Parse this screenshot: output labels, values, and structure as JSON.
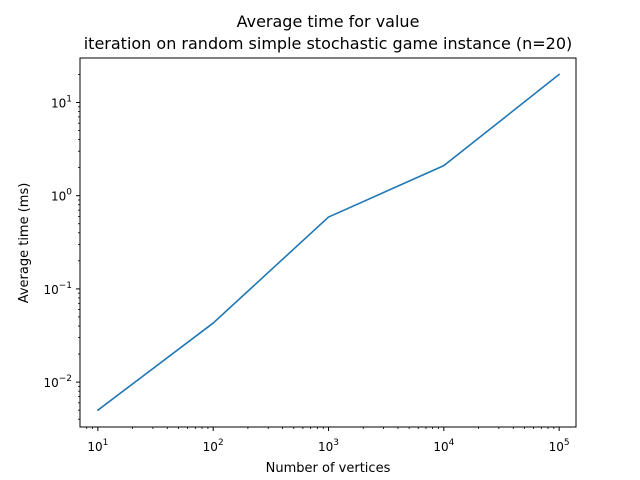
{
  "chart_data": {
    "type": "line",
    "title_lines": [
      "Average time for value",
      "iteration on random simple stochastic game instance (n=20)"
    ],
    "xlabel": "Number of vertices",
    "ylabel": "Average time (ms)",
    "x_scale": "log",
    "y_scale": "log",
    "xlim": [
      7,
      140000
    ],
    "ylim": [
      0.0033,
      30
    ],
    "x_ticks": [
      {
        "value": 10,
        "base": "10",
        "exp": "1"
      },
      {
        "value": 100,
        "base": "10",
        "exp": "2"
      },
      {
        "value": 1000,
        "base": "10",
        "exp": "3"
      },
      {
        "value": 10000,
        "base": "10",
        "exp": "4"
      },
      {
        "value": 100000,
        "base": "10",
        "exp": "5"
      }
    ],
    "y_ticks": [
      {
        "value": 0.01,
        "base": "10",
        "exp": "−2"
      },
      {
        "value": 0.1,
        "base": "10",
        "exp": "−1"
      },
      {
        "value": 1,
        "base": "10",
        "exp": "0"
      },
      {
        "value": 10,
        "base": "10",
        "exp": "1"
      }
    ],
    "grid": false,
    "line_color": "#1f77b4",
    "series": [
      {
        "x": [
          10,
          100,
          1000,
          10000,
          100000
        ],
        "y": [
          0.005,
          0.043,
          0.59,
          2.1,
          20
        ]
      }
    ]
  }
}
